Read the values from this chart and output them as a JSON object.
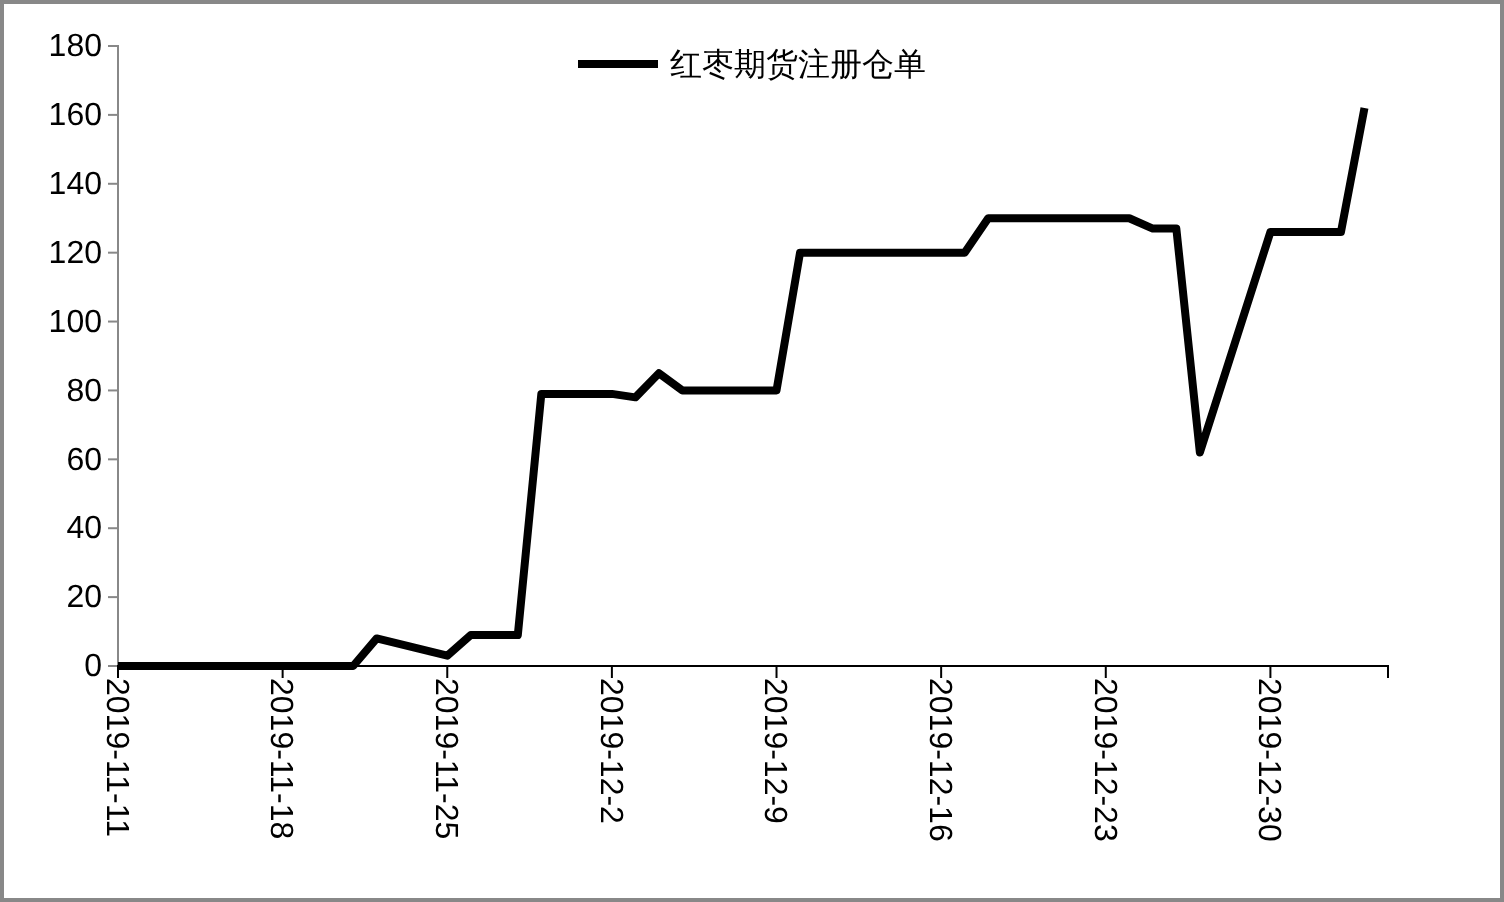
{
  "chart_data": {
    "type": "line",
    "legend": "top",
    "x": [
      "2019-11-11",
      "2019-11-12",
      "2019-11-13",
      "2019-11-14",
      "2019-11-15",
      "2019-11-18",
      "2019-11-19",
      "2019-11-20",
      "2019-11-21",
      "2019-11-22",
      "2019-11-25",
      "2019-11-26",
      "2019-11-27",
      "2019-11-28",
      "2019-11-29",
      "2019-12-02",
      "2019-12-03",
      "2019-12-04",
      "2019-12-05",
      "2019-12-06",
      "2019-12-09",
      "2019-12-10",
      "2019-12-11",
      "2019-12-12",
      "2019-12-13",
      "2019-12-16",
      "2019-12-17",
      "2019-12-18",
      "2019-12-19",
      "2019-12-20",
      "2019-12-23",
      "2019-12-24",
      "2019-12-25",
      "2019-12-26",
      "2019-12-27",
      "2019-12-30",
      "2019-12-31",
      "2020-01-02",
      "2020-01-03"
    ],
    "series": [
      {
        "name": "红枣期货注册仓单",
        "color": "#000000",
        "values": [
          0,
          0,
          0,
          0,
          0,
          0,
          0,
          0,
          0,
          8,
          3,
          9,
          9,
          9,
          79,
          79,
          78,
          85,
          80,
          80,
          80,
          120,
          120,
          120,
          120,
          120,
          120,
          130,
          130,
          130,
          130,
          130,
          127,
          127,
          62,
          126,
          126,
          126,
          162
        ]
      }
    ],
    "xlim": [
      "2019-11-11",
      "2020-01-04"
    ],
    "xticks": [
      {
        "value": "2019-11-11",
        "label": "2019-11-11"
      },
      {
        "value": "2019-11-18",
        "label": "2019-11-18"
      },
      {
        "value": "2019-11-25",
        "label": "2019-11-25"
      },
      {
        "value": "2019-12-02",
        "label": "2019-12-2"
      },
      {
        "value": "2019-12-09",
        "label": "2019-12-9"
      },
      {
        "value": "2019-12-16",
        "label": "2019-12-16"
      },
      {
        "value": "2019-12-23",
        "label": "2019-12-23"
      },
      {
        "value": "2019-12-30",
        "label": "2019-12-30"
      }
    ],
    "ylim": [
      0,
      180
    ],
    "yticks": [
      0,
      20,
      40,
      60,
      80,
      100,
      120,
      140,
      160,
      180
    ],
    "grid": false,
    "marker": "none",
    "line_style": "solid"
  }
}
